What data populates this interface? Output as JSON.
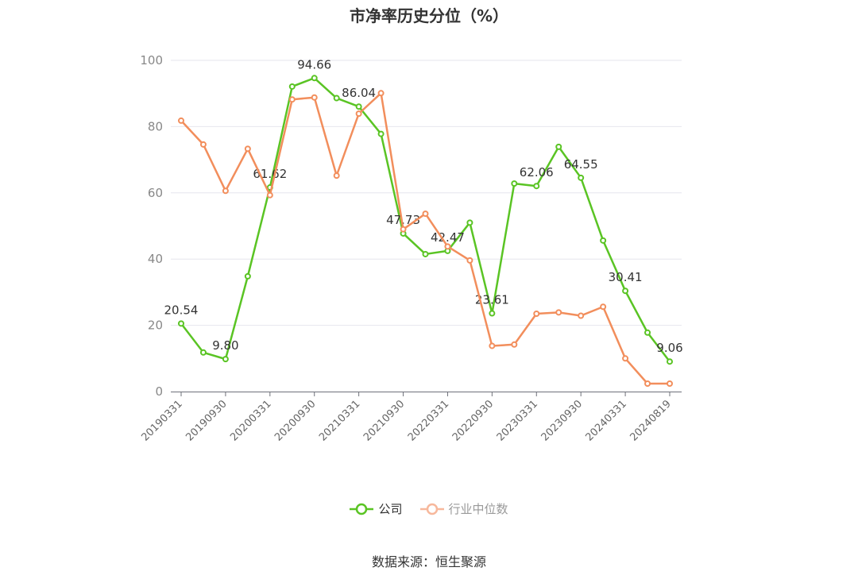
{
  "chart_data": {
    "type": "line",
    "title": "市净率历史分位（%）",
    "ylim": [
      0,
      100
    ],
    "yticks": [
      0,
      20,
      40,
      60,
      80,
      100
    ],
    "x": [
      "20190331",
      "20190630",
      "20190930",
      "20191231",
      "20200331",
      "20200630",
      "20200930",
      "20201231",
      "20210331",
      "20210630",
      "20210930",
      "20211231",
      "20220331",
      "20220630",
      "20220930",
      "20221231",
      "20230331",
      "20230630",
      "20230930",
      "20231231",
      "20240331",
      "20240630",
      "20240819"
    ],
    "x_tick_labels": [
      "20190331",
      "20190930",
      "20200331",
      "20200930",
      "20210331",
      "20210930",
      "20220331",
      "20220930",
      "20230331",
      "20230930",
      "20240331",
      "20240819"
    ],
    "series": [
      {
        "name": "公司",
        "color": "#5ac424",
        "values": [
          20.54,
          11.8,
          9.8,
          34.8,
          61.62,
          92.1,
          94.66,
          88.6,
          86.04,
          77.8,
          47.73,
          41.5,
          42.47,
          51.0,
          23.61,
          62.8,
          62.06,
          73.9,
          64.55,
          45.6,
          30.41,
          17.8,
          9.06
        ],
        "labels": {
          "0": "20.54",
          "2": "9.80",
          "4": "61.62",
          "6": "94.66",
          "8": "86.04",
          "10": "47.73",
          "12": "42.47",
          "14": "23.61",
          "16": "62.06",
          "18": "64.55",
          "20": "30.41",
          "22": "9.06"
        }
      },
      {
        "name": "行业中位数",
        "color": "#f28e5c",
        "values": [
          81.8,
          74.6,
          60.6,
          73.3,
          59.3,
          88.2,
          88.8,
          65.2,
          83.9,
          90.1,
          49.0,
          53.7,
          43.8,
          39.6,
          13.8,
          14.2,
          23.5,
          23.9,
          22.9,
          25.6,
          10.0,
          2.4,
          2.4
        ]
      }
    ],
    "legend_position": "bottom-center",
    "grid": true
  },
  "legend": [
    {
      "label": "公司",
      "color": "#5ac424",
      "active": true
    },
    {
      "label": "行业中位数",
      "color": "#f7b89c",
      "active": false
    }
  ],
  "source": "数据来源：恒生聚源"
}
